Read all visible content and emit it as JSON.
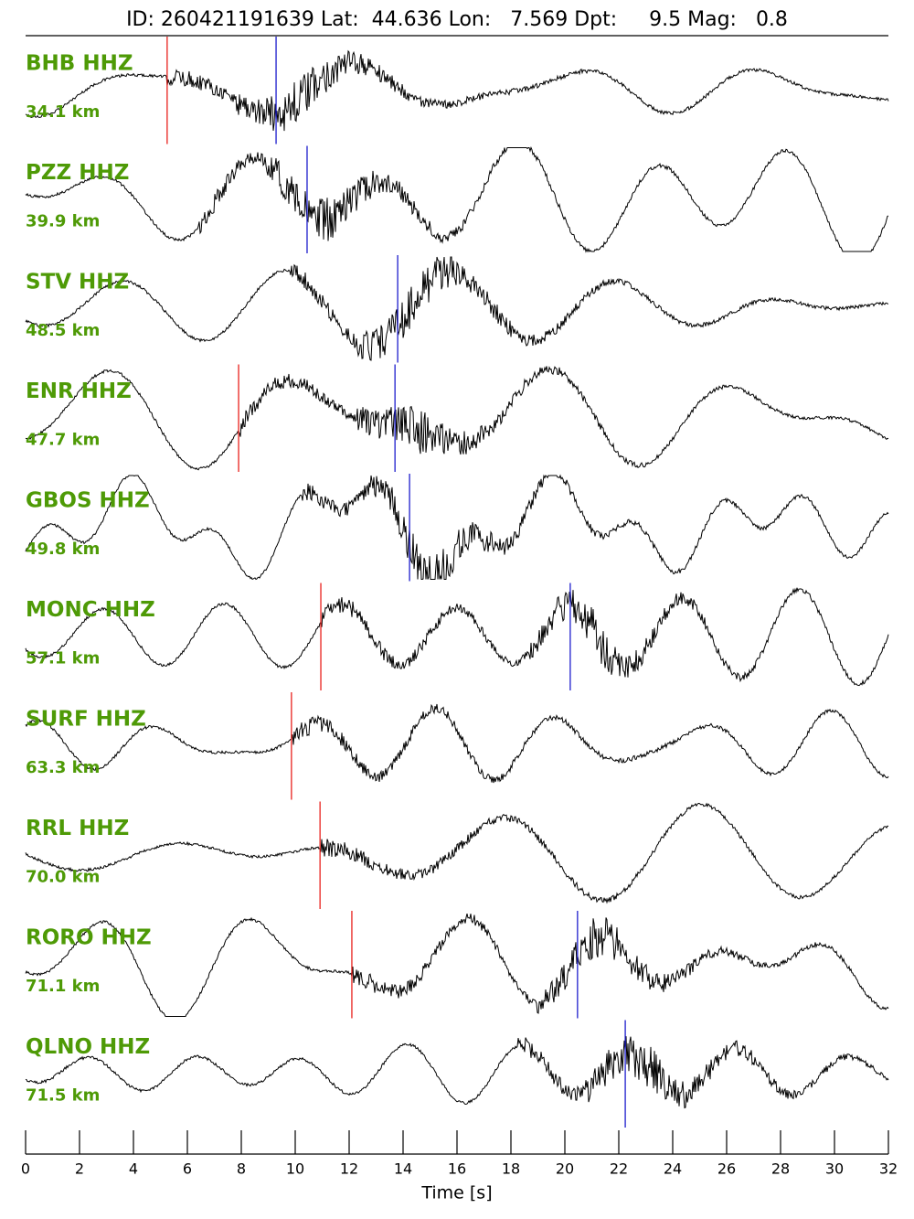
{
  "chart_data": {
    "type": "seismogram",
    "title": "ID: 260421191639 Lat:  44.636 Lon:   7.569 Dpt:     9.5 Mag:   0.8",
    "xlabel": "Time [s]",
    "xlim": [
      0,
      32
    ],
    "xticks": [
      0,
      2,
      4,
      6,
      8,
      10,
      12,
      14,
      16,
      18,
      20,
      22,
      24,
      26,
      28,
      30,
      32
    ],
    "label_color": "#4e9a06",
    "p_color": "#e8201c",
    "s_color": "#1c1ccc",
    "traces": [
      {
        "name": "BHB HHZ",
        "distance": "34.1 km",
        "p": 5.25,
        "s": 9.29
      },
      {
        "name": "PZZ HHZ",
        "distance": "39.9 km",
        "p": null,
        "s": 10.44
      },
      {
        "name": "STV HHZ",
        "distance": "48.5 km",
        "p": null,
        "s": 13.8
      },
      {
        "name": "ENR HHZ",
        "distance": "47.7 km",
        "p": 7.9,
        "s": 13.7
      },
      {
        "name": "GBOS HHZ",
        "distance": "49.8 km",
        "p": null,
        "s": 14.24
      },
      {
        "name": "MONC HHZ",
        "distance": "57.1 km",
        "p": 10.95,
        "s": 20.2
      },
      {
        "name": "SURF HHZ",
        "distance": "63.3 km",
        "p": 9.86,
        "s": null
      },
      {
        "name": "RRL HHZ",
        "distance": "70.0 km",
        "p": 10.92,
        "s": null
      },
      {
        "name": "RORO HHZ",
        "distance": "71.1 km",
        "p": 12.1,
        "s": 20.47
      },
      {
        "name": "QLNO HHZ",
        "distance": "71.5 km",
        "p": null,
        "s": 22.24
      }
    ]
  }
}
